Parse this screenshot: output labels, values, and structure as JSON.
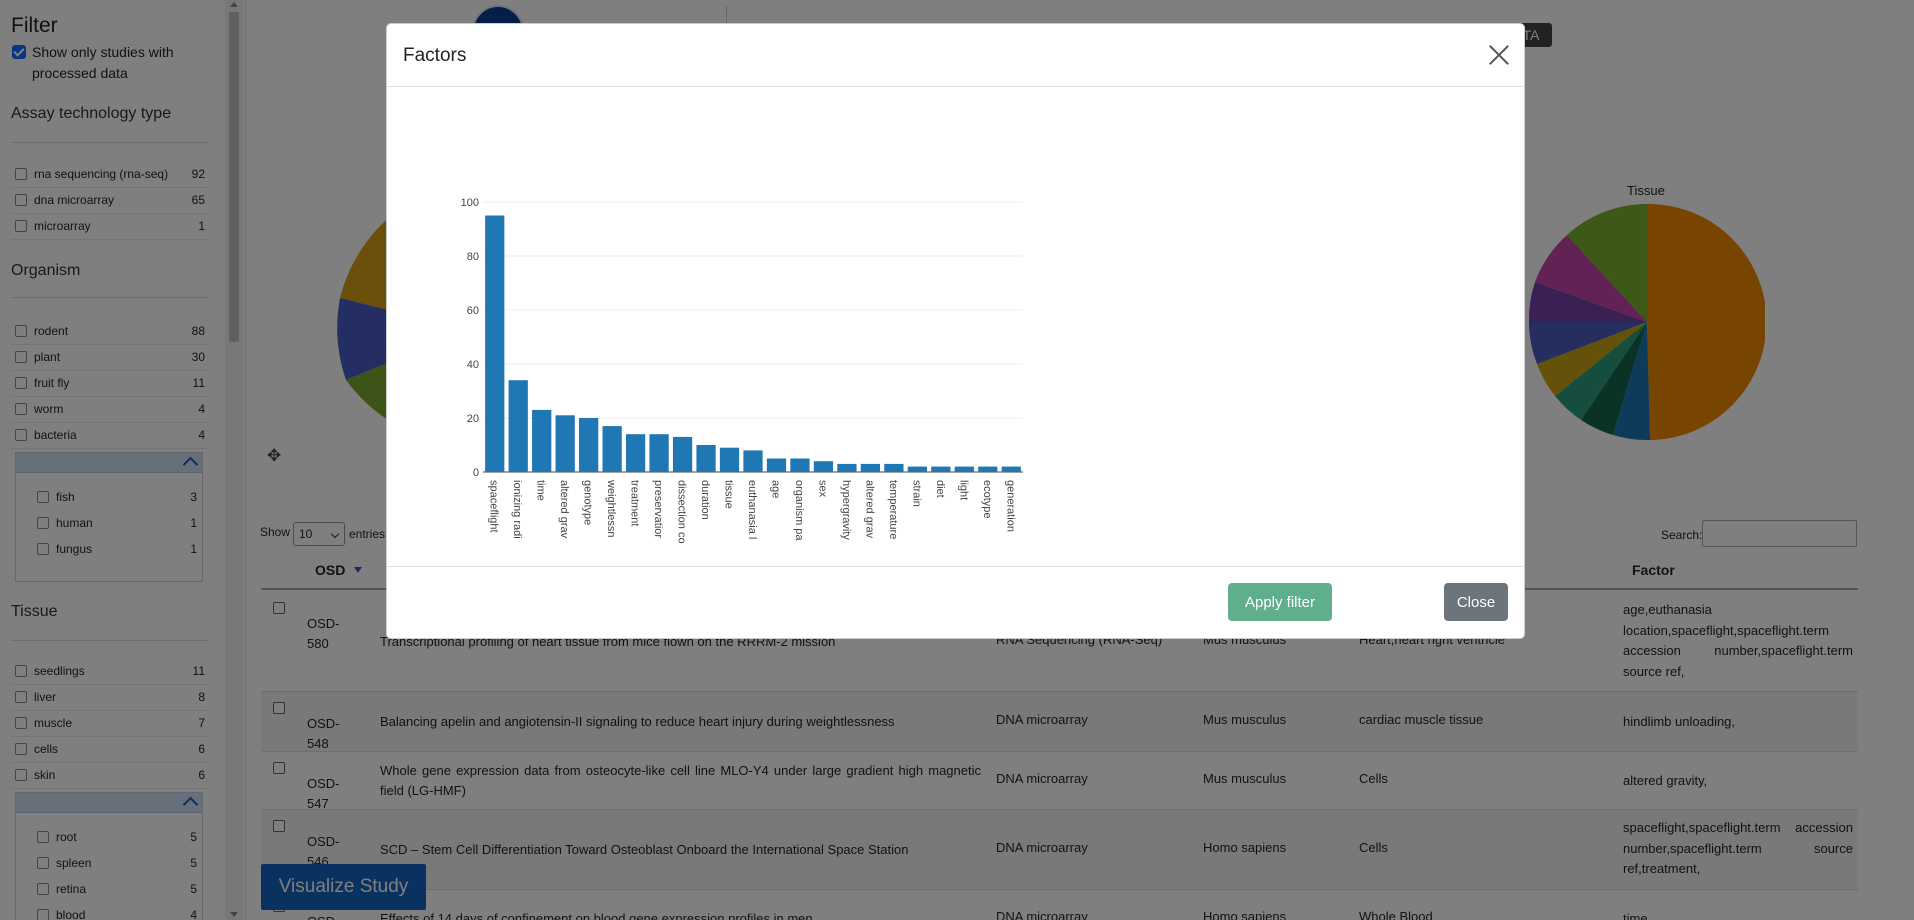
{
  "sidebar": {
    "title": "Filter",
    "processed_label": "Show only studies with processed data",
    "assay": {
      "title": "Assay technology type",
      "items": [
        {
          "label": "rna sequencing (rna-seq)",
          "count": "92"
        },
        {
          "label": "dna microarray",
          "count": "65"
        },
        {
          "label": "microarray",
          "count": "1"
        }
      ]
    },
    "organism": {
      "title": "Organism",
      "items": [
        {
          "label": "rodent",
          "count": "88"
        },
        {
          "label": "plant",
          "count": "30"
        },
        {
          "label": "fruit fly",
          "count": "11"
        },
        {
          "label": "worm",
          "count": "4"
        },
        {
          "label": "bacteria",
          "count": "4"
        }
      ],
      "more": [
        {
          "label": "fish",
          "count": "3"
        },
        {
          "label": "human",
          "count": "1"
        },
        {
          "label": "fungus",
          "count": "1"
        }
      ]
    },
    "tissue": {
      "title": "Tissue",
      "items": [
        {
          "label": "seedlings",
          "count": "11"
        },
        {
          "label": "liver",
          "count": "8"
        },
        {
          "label": "muscle",
          "count": "7"
        },
        {
          "label": "cells",
          "count": "6"
        },
        {
          "label": "skin",
          "count": "6"
        }
      ],
      "more": [
        {
          "label": "root",
          "count": "5"
        },
        {
          "label": "spleen",
          "count": "5"
        },
        {
          "label": "retina",
          "count": "5"
        },
        {
          "label": "blood",
          "count": "4"
        }
      ]
    }
  },
  "header": {
    "tag": "TA"
  },
  "tissue_pie_title": "Tissue",
  "table": {
    "show_label": "Show",
    "entries_value": "10",
    "entries_label": "entries",
    "search_label": "Search:",
    "columns": {
      "osd": "OSD",
      "factor": "Factor"
    },
    "rows": [
      {
        "osd": "OSD-580",
        "title": "Transcriptional profiling of heart tissue from mice flown on the RRRM-2 mission",
        "assay": "RNA Sequencing (RNA-Seq)",
        "organism": "Mus musculus",
        "tissue": "Heart,heart right ventricle",
        "factor": "age,euthanasia location,spaceflight,spaceflight.term accession number,spaceflight.term source ref,"
      },
      {
        "osd": "OSD-548",
        "title": "Balancing apelin and angiotensin-II signaling to reduce heart injury during weightlessness",
        "assay": "DNA microarray",
        "organism": "Mus musculus",
        "tissue": "cardiac muscle tissue",
        "factor": "hindlimb unloading,"
      },
      {
        "osd": "OSD-547",
        "title": "Whole gene expression data from osteocyte-like cell line MLO-Y4 under large gradient high magnetic field (LG-HMF)",
        "assay": "DNA microarray",
        "organism": "Mus musculus",
        "tissue": "Cells",
        "factor": "altered gravity,"
      },
      {
        "osd": "OSD-546",
        "title": "SCD – Stem Cell Differentiation Toward Osteoblast Onboard the International Space Station",
        "assay": "DNA microarray",
        "organism": "Homo sapiens",
        "tissue": "Cells",
        "factor": "spaceflight,spaceflight.term accession number,spaceflight.term source ref,treatment,"
      },
      {
        "osd": "OSD-",
        "title": "Effects of 14 days of confinement on blood gene expression profiles in men",
        "assay": "DNA microarray",
        "organism": "Homo sapiens",
        "tissue": "Whole Blood",
        "factor": "time,"
      }
    ]
  },
  "visualize_label": "Visualize Study",
  "modal": {
    "title": "Factors",
    "apply_label": "Apply filter",
    "close_label": "Close"
  },
  "colors": {
    "bar": "#1f77b4",
    "primary": "#1565c0",
    "apply": "#5fae8c",
    "close": "#6c757d"
  },
  "chart_data": {
    "type": "bar",
    "ylim": [
      0,
      100
    ],
    "yticks": [
      0,
      20,
      40,
      60,
      80,
      100
    ],
    "categories": [
      "spaceflight",
      "ionizing radi",
      "time",
      "altered grav",
      "genotype",
      "weightlessn",
      "treatment",
      "preservatior",
      "dissection co",
      "duration",
      "tissue",
      "euthanasia l",
      "age",
      "organism pa",
      "sex",
      "hypergravity",
      "altered grav",
      "temperature",
      "strain",
      "diet",
      "light",
      "ecotype",
      "generation"
    ],
    "values": [
      95,
      34,
      23,
      21,
      20,
      17,
      14,
      14,
      13,
      10,
      9,
      8,
      5,
      5,
      4,
      3,
      3,
      3,
      2,
      2,
      2,
      2,
      2
    ],
    "grid": true
  }
}
